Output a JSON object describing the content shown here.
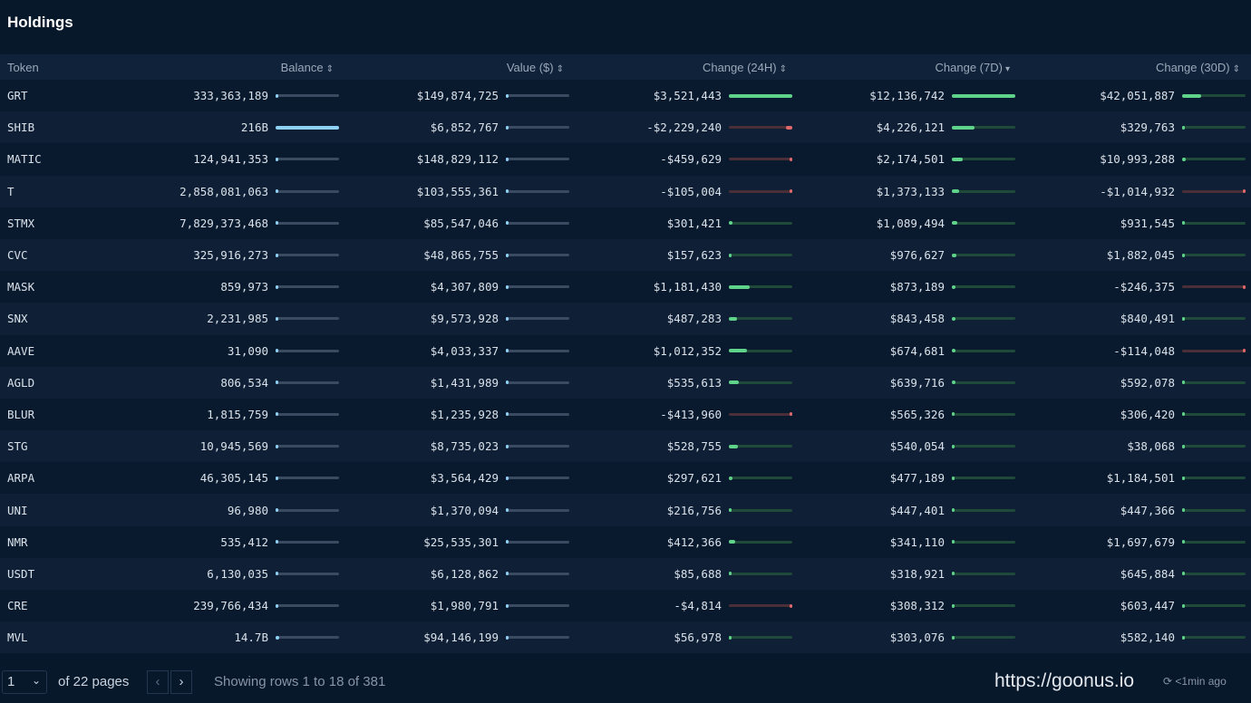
{
  "title": "Holdings",
  "columns": [
    {
      "label": "Token"
    },
    {
      "label": "Balance",
      "sort": "⇕"
    },
    {
      "label": "Value ($)",
      "sort": "⇕"
    },
    {
      "label": "Change (24H)",
      "sort": "⇕"
    },
    {
      "label": "Change (7D)",
      "sort": "▾"
    },
    {
      "label": "Change (30D)",
      "sort": "⇕"
    }
  ],
  "colors": {
    "positive": "#5fd38a",
    "negative": "#e0686a",
    "balance": "#8fd0f5",
    "track": "#3a4a60"
  },
  "rows": [
    {
      "token": "GRT",
      "balance": "333,363,189",
      "balance_fill": 0.0,
      "value": "$149,874,725",
      "value_fill": 0.02,
      "c24": "$3,521,443",
      "c24_fill": 1.0,
      "c7": "$12,136,742",
      "c7_fill": 1.0,
      "c30": "$42,051,887",
      "c30_fill": 0.3
    },
    {
      "token": "SHIB",
      "balance": "216B",
      "balance_fill": 1.0,
      "value": "$6,852,767",
      "value_fill": 0.0,
      "c24": "-$2,229,240",
      "c24_fill": -0.1,
      "c7": "$4,226,121",
      "c7_fill": 0.35,
      "c30": "$329,763",
      "c30_fill": 0.01
    },
    {
      "token": "MATIC",
      "balance": "124,941,353",
      "balance_fill": 0.0,
      "value": "$148,829,112",
      "value_fill": 0.02,
      "c24": "-$459,629",
      "c24_fill": -0.02,
      "c7": "$2,174,501",
      "c7_fill": 0.17,
      "c30": "$10,993,288",
      "c30_fill": 0.06
    },
    {
      "token": "T",
      "balance": "2,858,081,063",
      "balance_fill": 0.01,
      "value": "$103,555,361",
      "value_fill": 0.02,
      "c24": "-$105,004",
      "c24_fill": -0.01,
      "c7": "$1,373,133",
      "c7_fill": 0.11,
      "c30": "-$1,014,932",
      "c30_fill": -0.03
    },
    {
      "token": "STMX",
      "balance": "7,829,373,468",
      "balance_fill": 0.02,
      "value": "$85,547,046",
      "value_fill": 0.02,
      "c24": "$301,421",
      "c24_fill": 0.06,
      "c7": "$1,089,494",
      "c7_fill": 0.08,
      "c30": "$931,545",
      "c30_fill": 0.02
    },
    {
      "token": "CVC",
      "balance": "325,916,273",
      "balance_fill": 0.0,
      "value": "$48,865,755",
      "value_fill": 0.01,
      "c24": "$157,623",
      "c24_fill": 0.03,
      "c7": "$976,627",
      "c7_fill": 0.07,
      "c30": "$1,882,045",
      "c30_fill": 0.04
    },
    {
      "token": "MASK",
      "balance": "859,973",
      "balance_fill": 0.0,
      "value": "$4,307,809",
      "value_fill": 0.0,
      "c24": "$1,181,430",
      "c24_fill": 0.33,
      "c7": "$873,189",
      "c7_fill": 0.06,
      "c30": "-$246,375",
      "c30_fill": -0.01
    },
    {
      "token": "SNX",
      "balance": "2,231,985",
      "balance_fill": 0.0,
      "value": "$9,573,928",
      "value_fill": 0.0,
      "c24": "$487,283",
      "c24_fill": 0.13,
      "c7": "$843,458",
      "c7_fill": 0.06,
      "c30": "$840,491",
      "c30_fill": 0.02
    },
    {
      "token": "AAVE",
      "balance": "31,090",
      "balance_fill": 0.0,
      "value": "$4,033,337",
      "value_fill": 0.0,
      "c24": "$1,012,352",
      "c24_fill": 0.29,
      "c7": "$674,681",
      "c7_fill": 0.05,
      "c30": "-$114,048",
      "c30_fill": -0.01
    },
    {
      "token": "AGLD",
      "balance": "806,534",
      "balance_fill": 0.0,
      "value": "$1,431,989",
      "value_fill": 0.0,
      "c24": "$535,613",
      "c24_fill": 0.15,
      "c7": "$639,716",
      "c7_fill": 0.05,
      "c30": "$592,078",
      "c30_fill": 0.01
    },
    {
      "token": "BLUR",
      "balance": "1,815,759",
      "balance_fill": 0.0,
      "value": "$1,235,928",
      "value_fill": 0.0,
      "c24": "-$413,960",
      "c24_fill": -0.02,
      "c7": "$565,326",
      "c7_fill": 0.04,
      "c30": "$306,420",
      "c30_fill": 0.01
    },
    {
      "token": "STG",
      "balance": "10,945,569",
      "balance_fill": 0.0,
      "value": "$8,735,023",
      "value_fill": 0.0,
      "c24": "$528,755",
      "c24_fill": 0.14,
      "c7": "$540,054",
      "c7_fill": 0.04,
      "c30": "$38,068",
      "c30_fill": 0.0
    },
    {
      "token": "ARPA",
      "balance": "46,305,145",
      "balance_fill": 0.0,
      "value": "$3,564,429",
      "value_fill": 0.0,
      "c24": "$297,621",
      "c24_fill": 0.06,
      "c7": "$477,189",
      "c7_fill": 0.04,
      "c30": "$1,184,501",
      "c30_fill": 0.03
    },
    {
      "token": "UNI",
      "balance": "96,980",
      "balance_fill": 0.0,
      "value": "$1,370,094",
      "value_fill": 0.0,
      "c24": "$216,756",
      "c24_fill": 0.04,
      "c7": "$447,401",
      "c7_fill": 0.03,
      "c30": "$447,366",
      "c30_fill": 0.01
    },
    {
      "token": "NMR",
      "balance": "535,412",
      "balance_fill": 0.0,
      "value": "$25,535,301",
      "value_fill": 0.0,
      "c24": "$412,366",
      "c24_fill": 0.1,
      "c7": "$341,110",
      "c7_fill": 0.03,
      "c30": "$1,697,679",
      "c30_fill": 0.04
    },
    {
      "token": "USDT",
      "balance": "6,130,035",
      "balance_fill": 0.0,
      "value": "$6,128,862",
      "value_fill": 0.0,
      "c24": "$85,688",
      "c24_fill": 0.02,
      "c7": "$318,921",
      "c7_fill": 0.02,
      "c30": "$645,884",
      "c30_fill": 0.01
    },
    {
      "token": "CRE",
      "balance": "239,766,434",
      "balance_fill": 0.0,
      "value": "$1,980,791",
      "value_fill": 0.0,
      "c24": "-$4,814",
      "c24_fill": -0.0,
      "c7": "$308,312",
      "c7_fill": 0.02,
      "c30": "$603,447",
      "c30_fill": 0.01
    },
    {
      "token": "MVL",
      "balance": "14.7B",
      "balance_fill": 0.05,
      "value": "$94,146,199",
      "value_fill": 0.02,
      "c24": "$56,978",
      "c24_fill": 0.01,
      "c7": "$303,076",
      "c7_fill": 0.02,
      "c30": "$582,140",
      "c30_fill": 0.01
    }
  ],
  "footer": {
    "page": "1",
    "of_pages": "of 22 pages",
    "prev": "‹",
    "next": "›",
    "showing": "Showing rows 1 to 18 of 381",
    "url": "https://goonus.io",
    "updated": "<1min ago",
    "refresh_icon": "⟳"
  }
}
